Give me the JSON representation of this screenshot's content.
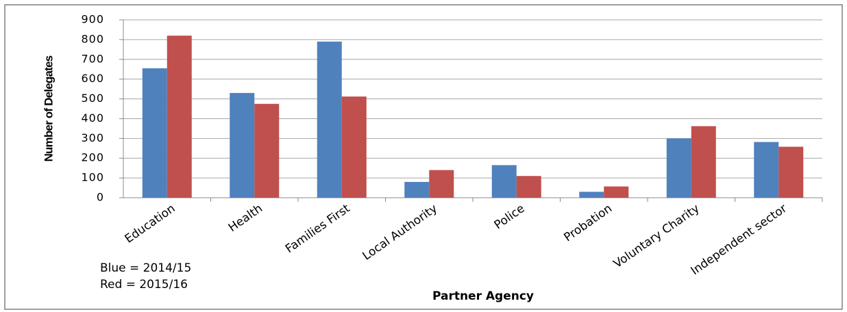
{
  "chart_data": {
    "type": "bar",
    "categories": [
      "Education",
      "Health",
      "Families First",
      "Local Authority",
      "Police",
      "Probation",
      "Voluntary Charity",
      "Independent sector"
    ],
    "series": [
      {
        "color": "#4f81bd",
        "values": [
          655,
          530,
          790,
          80,
          165,
          30,
          300,
          282
        ]
      },
      {
        "color": "#c0504d",
        "values": [
          820,
          475,
          512,
          140,
          110,
          57,
          362,
          258
        ]
      }
    ],
    "ylabel": "Number of Delegates",
    "xlabel": "Partner Agency",
    "annotations": [
      "Blue = 2014/15",
      "Red = 2015/16"
    ],
    "ylim": [
      0,
      900
    ],
    "yticks": [
      0,
      100,
      200,
      300,
      400,
      500,
      600,
      700,
      800,
      900
    ],
    "grid": true
  }
}
